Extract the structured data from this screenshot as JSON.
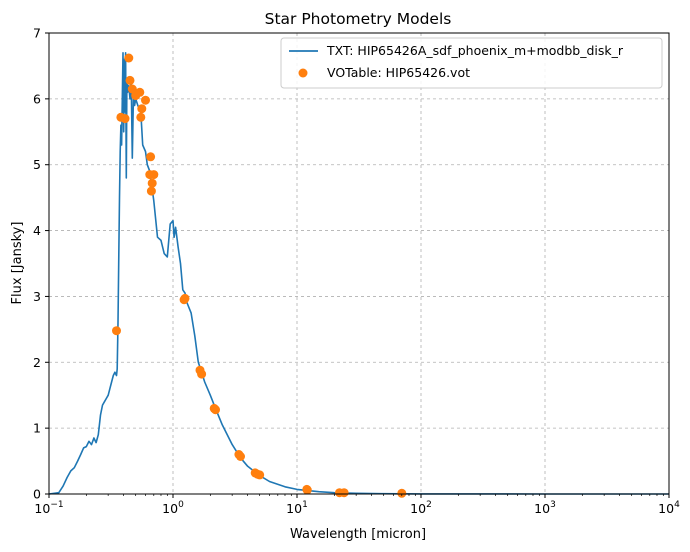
{
  "chart_data": {
    "type": "line+scatter",
    "title": "Star Photometry Models",
    "xlabel": "Wavelength [micron]",
    "ylabel": "Flux [Jansky]",
    "xscale": "log",
    "xlim": [
      0.1,
      10000
    ],
    "ylim": [
      0,
      7
    ],
    "grid": true,
    "legend_position": "top-right",
    "colors": {
      "model": "#1f77b4",
      "observed": "#ff7f0e",
      "grid": "#b0b0b0"
    },
    "x_ticks": [
      {
        "value": 0.1,
        "base": "10",
        "exp": "−1"
      },
      {
        "value": 1,
        "base": "10",
        "exp": "0"
      },
      {
        "value": 10,
        "base": "10",
        "exp": "1"
      },
      {
        "value": 100,
        "base": "10",
        "exp": "2"
      },
      {
        "value": 1000,
        "base": "10",
        "exp": "3"
      },
      {
        "value": 10000,
        "base": "10",
        "exp": "4"
      }
    ],
    "y_ticks": [
      "0",
      "1",
      "2",
      "3",
      "4",
      "5",
      "6",
      "7"
    ],
    "series": [
      {
        "name": "TXT: HIP65426A_sdf_phoenix_m+modbb_disk_r",
        "kind": "line",
        "points": [
          [
            0.1,
            0.0
          ],
          [
            0.12,
            0.02
          ],
          [
            0.13,
            0.12
          ],
          [
            0.14,
            0.25
          ],
          [
            0.15,
            0.35
          ],
          [
            0.16,
            0.4
          ],
          [
            0.17,
            0.5
          ],
          [
            0.18,
            0.6
          ],
          [
            0.19,
            0.7
          ],
          [
            0.2,
            0.72
          ],
          [
            0.21,
            0.8
          ],
          [
            0.22,
            0.75
          ],
          [
            0.23,
            0.85
          ],
          [
            0.24,
            0.78
          ],
          [
            0.25,
            0.9
          ],
          [
            0.26,
            1.2
          ],
          [
            0.27,
            1.35
          ],
          [
            0.28,
            1.4
          ],
          [
            0.29,
            1.45
          ],
          [
            0.3,
            1.5
          ],
          [
            0.31,
            1.6
          ],
          [
            0.32,
            1.7
          ],
          [
            0.33,
            1.8
          ],
          [
            0.34,
            1.85
          ],
          [
            0.35,
            1.8
          ],
          [
            0.355,
            1.9
          ],
          [
            0.36,
            2.6
          ],
          [
            0.365,
            3.5
          ],
          [
            0.37,
            4.5
          ],
          [
            0.375,
            5.2
          ],
          [
            0.38,
            5.6
          ],
          [
            0.385,
            5.3
          ],
          [
            0.39,
            6.0
          ],
          [
            0.395,
            6.7
          ],
          [
            0.4,
            5.5
          ],
          [
            0.405,
            6.6
          ],
          [
            0.41,
            5.8
          ],
          [
            0.415,
            6.7
          ],
          [
            0.42,
            4.8
          ],
          [
            0.425,
            6.3
          ],
          [
            0.43,
            6.1
          ],
          [
            0.44,
            6.2
          ],
          [
            0.45,
            6.0
          ],
          [
            0.46,
            6.3
          ],
          [
            0.47,
            5.1
          ],
          [
            0.48,
            6.1
          ],
          [
            0.49,
            5.9
          ],
          [
            0.5,
            6.0
          ],
          [
            0.52,
            5.9
          ],
          [
            0.55,
            5.8
          ],
          [
            0.57,
            5.3
          ],
          [
            0.6,
            5.2
          ],
          [
            0.62,
            5.0
          ],
          [
            0.65,
            4.9
          ],
          [
            0.7,
            4.45
          ],
          [
            0.75,
            3.9
          ],
          [
            0.8,
            3.85
          ],
          [
            0.85,
            3.65
          ],
          [
            0.9,
            3.6
          ],
          [
            0.95,
            4.1
          ],
          [
            1.0,
            4.15
          ],
          [
            1.02,
            3.9
          ],
          [
            1.05,
            4.05
          ],
          [
            1.1,
            3.75
          ],
          [
            1.15,
            3.5
          ],
          [
            1.2,
            3.1
          ],
          [
            1.25,
            3.05
          ],
          [
            1.3,
            2.9
          ],
          [
            1.4,
            2.75
          ],
          [
            1.5,
            2.4
          ],
          [
            1.6,
            2.0
          ],
          [
            1.7,
            1.85
          ],
          [
            1.8,
            1.7
          ],
          [
            2.0,
            1.5
          ],
          [
            2.2,
            1.3
          ],
          [
            2.5,
            1.05
          ],
          [
            3.0,
            0.75
          ],
          [
            3.5,
            0.55
          ],
          [
            4.0,
            0.42
          ],
          [
            5.0,
            0.28
          ],
          [
            6.0,
            0.19
          ],
          [
            8.0,
            0.11
          ],
          [
            10.0,
            0.07
          ],
          [
            15.0,
            0.035
          ],
          [
            20.0,
            0.02
          ],
          [
            30.0,
            0.01
          ],
          [
            50.0,
            0.005
          ],
          [
            100.0,
            0.002
          ],
          [
            1000.0,
            0.0
          ],
          [
            10000.0,
            0.0
          ]
        ]
      },
      {
        "name": "VOTable: HIP65426.vot",
        "kind": "scatter",
        "points": [
          [
            0.35,
            2.48
          ],
          [
            0.38,
            5.72
          ],
          [
            0.41,
            5.7
          ],
          [
            0.44,
            6.62
          ],
          [
            0.45,
            6.28
          ],
          [
            0.47,
            6.15
          ],
          [
            0.5,
            6.05
          ],
          [
            0.54,
            6.1
          ],
          [
            0.55,
            5.72
          ],
          [
            0.56,
            5.85
          ],
          [
            0.6,
            5.98
          ],
          [
            0.65,
            4.85
          ],
          [
            0.66,
            5.12
          ],
          [
            0.67,
            4.6
          ],
          [
            0.68,
            4.72
          ],
          [
            0.7,
            4.85
          ],
          [
            1.23,
            2.95
          ],
          [
            1.25,
            2.97
          ],
          [
            1.65,
            1.88
          ],
          [
            1.7,
            1.82
          ],
          [
            2.15,
            1.3
          ],
          [
            2.2,
            1.28
          ],
          [
            3.4,
            0.6
          ],
          [
            3.5,
            0.57
          ],
          [
            4.6,
            0.32
          ],
          [
            4.8,
            0.3
          ],
          [
            5.0,
            0.29
          ],
          [
            12.0,
            0.07
          ],
          [
            12.1,
            0.06
          ],
          [
            22.0,
            0.02
          ],
          [
            24.0,
            0.02
          ],
          [
            70.0,
            0.01
          ]
        ]
      }
    ]
  }
}
